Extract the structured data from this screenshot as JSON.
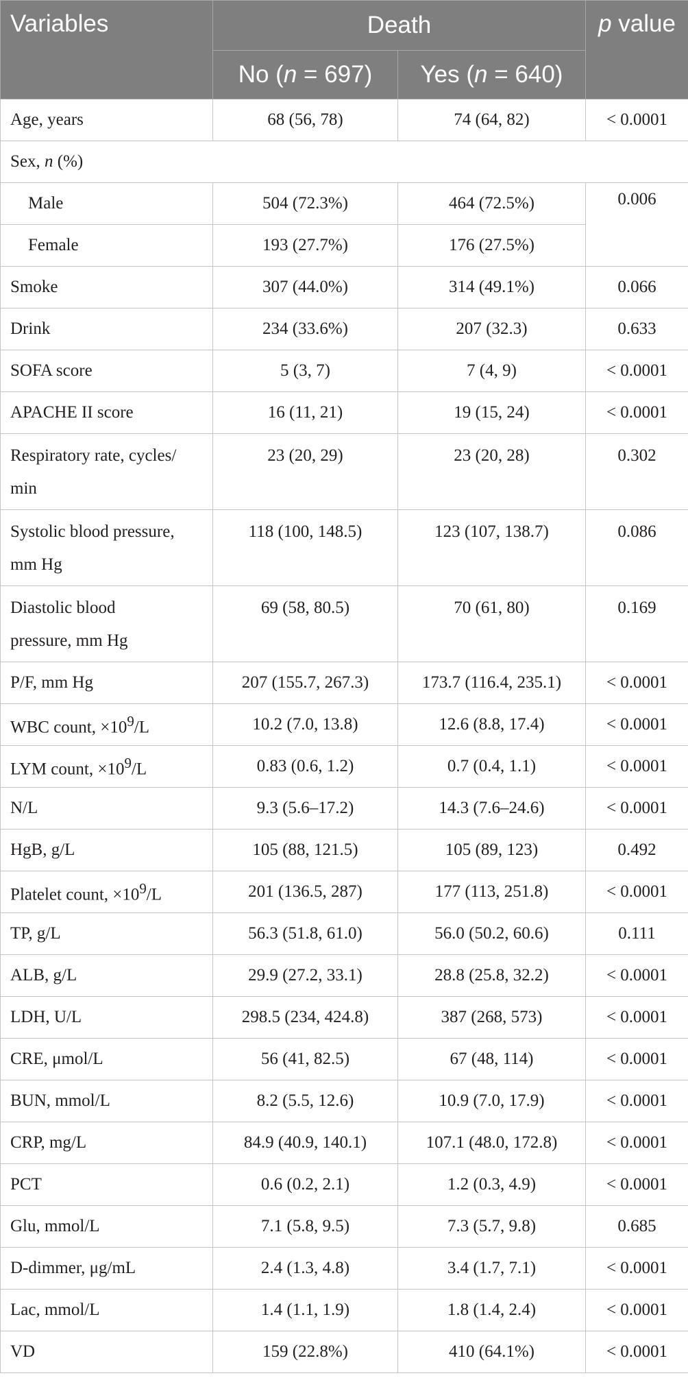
{
  "header": {
    "variables": "Variables",
    "death": "Death",
    "p_italic": "p",
    "p_rest": " value",
    "no_label": "No (",
    "no_n": "n",
    "no_rest": " = 697)",
    "yes_label": "Yes (",
    "yes_n": "n",
    "yes_rest": " = 640)"
  },
  "rows": [
    {
      "label": "Age, years",
      "no": "68 (56, 78)",
      "yes": "74 (64, 82)",
      "p": "< 0.0001"
    },
    {
      "label_pre": "Sex, ",
      "label_italic": "n",
      "label_post": " (%)"
    },
    {
      "label": "Male",
      "no": "504 (72.3%)",
      "yes": "464 (72.5%)",
      "p": "0.006"
    },
    {
      "label": "Female",
      "no": "193 (27.7%)",
      "yes": "176 (27.5%)"
    },
    {
      "label": "Smoke",
      "no": "307 (44.0%)",
      "yes": "314 (49.1%)",
      "p": "0.066"
    },
    {
      "label": "Drink",
      "no": "234 (33.6%)",
      "yes": "207 (32.3)",
      "p": "0.633"
    },
    {
      "label": "SOFA score",
      "no": "5 (3, 7)",
      "yes": "7 (4, 9)",
      "p": "< 0.0001"
    },
    {
      "label": "APACHE II score",
      "no": "16 (11, 21)",
      "yes": "19 (15, 24)",
      "p": "< 0.0001"
    },
    {
      "label_l1": "Respiratory rate, cycles/",
      "label_l2": "min",
      "no": "23 (20, 29)",
      "yes": "23 (20, 28)",
      "p": "0.302"
    },
    {
      "label_l1": "Systolic blood pressure,",
      "label_l2": "mm Hg",
      "no": "118 (100, 148.5)",
      "yes": "123 (107, 138.7)",
      "p": "0.086"
    },
    {
      "label_l1": "Diastolic blood",
      "label_l2": "pressure, mm Hg",
      "no": "69 (58, 80.5)",
      "yes": "70 (61, 80)",
      "p": "0.169"
    },
    {
      "label": "P/F, mm Hg",
      "no": "207 (155.7, 267.3)",
      "yes": "173.7 (116.4, 235.1)",
      "p": "< 0.0001"
    },
    {
      "label_pre": "WBC count, ×10",
      "label_sup": "9",
      "label_post": "/L",
      "no": "10.2 (7.0, 13.8)",
      "yes": "12.6 (8.8, 17.4)",
      "p": "< 0.0001"
    },
    {
      "label_pre": "LYM count, ×10",
      "label_sup": "9",
      "label_post": "/L",
      "no": "0.83 (0.6, 1.2)",
      "yes": "0.7 (0.4, 1.1)",
      "p": "< 0.0001"
    },
    {
      "label": "N/L",
      "no": "9.3 (5.6–17.2)",
      "yes": "14.3 (7.6–24.6)",
      "p": "< 0.0001"
    },
    {
      "label": "HgB, g/L",
      "no": "105 (88, 121.5)",
      "yes": "105 (89, 123)",
      "p": "0.492"
    },
    {
      "label_pre": "Platelet count, ×10",
      "label_sup": "9",
      "label_post": "/L",
      "no": "201 (136.5, 287)",
      "yes": "177 (113, 251.8)",
      "p": "< 0.0001"
    },
    {
      "label": "TP, g/L",
      "no": "56.3 (51.8, 61.0)",
      "yes": "56.0 (50.2, 60.6)",
      "p": "0.111"
    },
    {
      "label": "ALB, g/L",
      "no": "29.9 (27.2, 33.1)",
      "yes": "28.8 (25.8, 32.2)",
      "p": "< 0.0001"
    },
    {
      "label": "LDH, U/L",
      "no": "298.5 (234, 424.8)",
      "yes": "387 (268, 573)",
      "p": "< 0.0001"
    },
    {
      "label": "CRE, μmol/L",
      "no": "56 (41, 82.5)",
      "yes": "67 (48, 114)",
      "p": "< 0.0001"
    },
    {
      "label": "BUN, mmol/L",
      "no": "8.2 (5.5, 12.6)",
      "yes": "10.9 (7.0, 17.9)",
      "p": "< 0.0001"
    },
    {
      "label": "CRP, mg/L",
      "no": "84.9 (40.9, 140.1)",
      "yes": "107.1 (48.0, 172.8)",
      "p": "< 0.0001"
    },
    {
      "label": "PCT",
      "no": "0.6 (0.2, 2.1)",
      "yes": "1.2 (0.3, 4.9)",
      "p": "< 0.0001"
    },
    {
      "label": "Glu, mmol/L",
      "no": "7.1 (5.8, 9.5)",
      "yes": "7.3 (5.7, 9.8)",
      "p": "0.685"
    },
    {
      "label": "D-dimmer, μg/mL",
      "no": "2.4 (1.3, 4.8)",
      "yes": "3.4 (1.7, 7.1)",
      "p": "< 0.0001"
    },
    {
      "label": "Lac, mmol/L",
      "no": "1.4 (1.1, 1.9)",
      "yes": "1.8 (1.4, 2.4)",
      "p": "< 0.0001"
    },
    {
      "label": "VD",
      "no": "159 (22.8%)",
      "yes": "410 (64.1%)",
      "p": "< 0.0001"
    }
  ]
}
